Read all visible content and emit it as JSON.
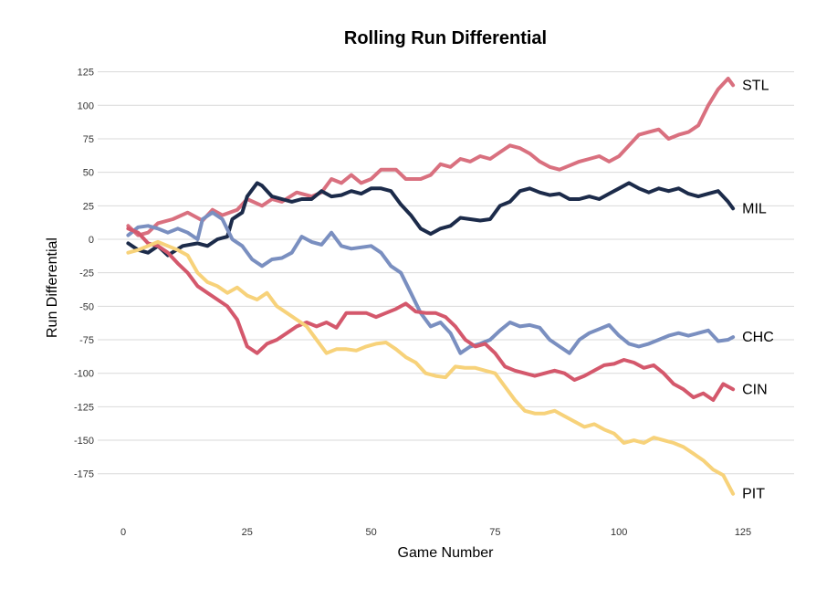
{
  "chart_data": {
    "type": "line",
    "title": "Rolling Run Differential",
    "xlabel": "Game Number",
    "ylabel": "Run Differential",
    "xlim": [
      0,
      125
    ],
    "ylim": [
      -190,
      125
    ],
    "x_ticks": [
      0,
      25,
      50,
      75,
      100,
      125
    ],
    "y_ticks": [
      125,
      100,
      75,
      50,
      25,
      0,
      -25,
      -50,
      -75,
      -100,
      -125,
      -150,
      -175
    ],
    "grid": "horizontal",
    "legend": "end-of-line labels",
    "series": [
      {
        "name": "STL",
        "color": "#d9707f",
        "points": [
          [
            1,
            10
          ],
          [
            3,
            3
          ],
          [
            5,
            5
          ],
          [
            7,
            12
          ],
          [
            10,
            15
          ],
          [
            13,
            20
          ],
          [
            16,
            14
          ],
          [
            18,
            22
          ],
          [
            20,
            18
          ],
          [
            23,
            22
          ],
          [
            25,
            30
          ],
          [
            28,
            25
          ],
          [
            30,
            30
          ],
          [
            32,
            28
          ],
          [
            35,
            35
          ],
          [
            38,
            32
          ],
          [
            40,
            35
          ],
          [
            42,
            45
          ],
          [
            44,
            42
          ],
          [
            46,
            48
          ],
          [
            48,
            42
          ],
          [
            50,
            45
          ],
          [
            52,
            52
          ],
          [
            55,
            52
          ],
          [
            57,
            45
          ],
          [
            60,
            45
          ],
          [
            62,
            48
          ],
          [
            64,
            56
          ],
          [
            66,
            54
          ],
          [
            68,
            60
          ],
          [
            70,
            58
          ],
          [
            72,
            62
          ],
          [
            74,
            60
          ],
          [
            76,
            65
          ],
          [
            78,
            70
          ],
          [
            80,
            68
          ],
          [
            82,
            64
          ],
          [
            84,
            58
          ],
          [
            86,
            54
          ],
          [
            88,
            52
          ],
          [
            90,
            55
          ],
          [
            92,
            58
          ],
          [
            94,
            60
          ],
          [
            96,
            62
          ],
          [
            98,
            58
          ],
          [
            100,
            62
          ],
          [
            102,
            70
          ],
          [
            104,
            78
          ],
          [
            106,
            80
          ],
          [
            108,
            82
          ],
          [
            110,
            75
          ],
          [
            112,
            78
          ],
          [
            114,
            80
          ],
          [
            116,
            85
          ],
          [
            118,
            100
          ],
          [
            120,
            112
          ],
          [
            122,
            120
          ],
          [
            123,
            115
          ]
        ]
      },
      {
        "name": "MIL",
        "color": "#1c2b4a",
        "points": [
          [
            1,
            -3
          ],
          [
            3,
            -8
          ],
          [
            5,
            -10
          ],
          [
            7,
            -5
          ],
          [
            9,
            -12
          ],
          [
            12,
            -5
          ],
          [
            15,
            -3
          ],
          [
            17,
            -5
          ],
          [
            19,
            0
          ],
          [
            21,
            2
          ],
          [
            22,
            15
          ],
          [
            24,
            20
          ],
          [
            25,
            32
          ],
          [
            27,
            42
          ],
          [
            28,
            40
          ],
          [
            30,
            32
          ],
          [
            32,
            30
          ],
          [
            34,
            28
          ],
          [
            36,
            30
          ],
          [
            38,
            30
          ],
          [
            40,
            36
          ],
          [
            42,
            32
          ],
          [
            44,
            33
          ],
          [
            46,
            36
          ],
          [
            48,
            34
          ],
          [
            50,
            38
          ],
          [
            52,
            38
          ],
          [
            54,
            36
          ],
          [
            56,
            26
          ],
          [
            58,
            18
          ],
          [
            60,
            8
          ],
          [
            62,
            4
          ],
          [
            64,
            8
          ],
          [
            66,
            10
          ],
          [
            68,
            16
          ],
          [
            70,
            15
          ],
          [
            72,
            14
          ],
          [
            74,
            15
          ],
          [
            76,
            25
          ],
          [
            78,
            28
          ],
          [
            80,
            36
          ],
          [
            82,
            38
          ],
          [
            84,
            35
          ],
          [
            86,
            33
          ],
          [
            88,
            34
          ],
          [
            90,
            30
          ],
          [
            92,
            30
          ],
          [
            94,
            32
          ],
          [
            96,
            30
          ],
          [
            98,
            34
          ],
          [
            100,
            38
          ],
          [
            102,
            42
          ],
          [
            104,
            38
          ],
          [
            106,
            35
          ],
          [
            108,
            38
          ],
          [
            110,
            36
          ],
          [
            112,
            38
          ],
          [
            114,
            34
          ],
          [
            116,
            32
          ],
          [
            118,
            34
          ],
          [
            120,
            36
          ],
          [
            122,
            28
          ],
          [
            123,
            23
          ]
        ]
      },
      {
        "name": "CHC",
        "color": "#7a8fc0",
        "points": [
          [
            1,
            3
          ],
          [
            3,
            9
          ],
          [
            5,
            10
          ],
          [
            7,
            8
          ],
          [
            9,
            5
          ],
          [
            11,
            8
          ],
          [
            13,
            5
          ],
          [
            15,
            0
          ],
          [
            16,
            15
          ],
          [
            18,
            20
          ],
          [
            20,
            15
          ],
          [
            22,
            0
          ],
          [
            24,
            -5
          ],
          [
            26,
            -15
          ],
          [
            28,
            -20
          ],
          [
            30,
            -15
          ],
          [
            32,
            -14
          ],
          [
            34,
            -10
          ],
          [
            36,
            2
          ],
          [
            38,
            -2
          ],
          [
            40,
            -4
          ],
          [
            42,
            5
          ],
          [
            44,
            -5
          ],
          [
            46,
            -7
          ],
          [
            48,
            -6
          ],
          [
            50,
            -5
          ],
          [
            52,
            -10
          ],
          [
            54,
            -20
          ],
          [
            56,
            -25
          ],
          [
            58,
            -40
          ],
          [
            60,
            -55
          ],
          [
            62,
            -65
          ],
          [
            64,
            -62
          ],
          [
            66,
            -70
          ],
          [
            68,
            -85
          ],
          [
            70,
            -80
          ],
          [
            72,
            -78
          ],
          [
            74,
            -75
          ],
          [
            76,
            -68
          ],
          [
            78,
            -62
          ],
          [
            80,
            -65
          ],
          [
            82,
            -64
          ],
          [
            84,
            -66
          ],
          [
            86,
            -75
          ],
          [
            88,
            -80
          ],
          [
            90,
            -85
          ],
          [
            92,
            -75
          ],
          [
            94,
            -70
          ],
          [
            96,
            -67
          ],
          [
            98,
            -64
          ],
          [
            100,
            -72
          ],
          [
            102,
            -78
          ],
          [
            104,
            -80
          ],
          [
            106,
            -78
          ],
          [
            108,
            -75
          ],
          [
            110,
            -72
          ],
          [
            112,
            -70
          ],
          [
            114,
            -72
          ],
          [
            116,
            -70
          ],
          [
            118,
            -68
          ],
          [
            120,
            -76
          ],
          [
            122,
            -75
          ],
          [
            123,
            -73
          ]
        ]
      },
      {
        "name": "CIN",
        "color": "#d4586c",
        "points": [
          [
            1,
            8
          ],
          [
            3,
            5
          ],
          [
            5,
            -3
          ],
          [
            7,
            -5
          ],
          [
            9,
            -10
          ],
          [
            11,
            -18
          ],
          [
            13,
            -25
          ],
          [
            15,
            -35
          ],
          [
            17,
            -40
          ],
          [
            19,
            -45
          ],
          [
            21,
            -50
          ],
          [
            23,
            -60
          ],
          [
            25,
            -80
          ],
          [
            27,
            -85
          ],
          [
            29,
            -78
          ],
          [
            31,
            -75
          ],
          [
            33,
            -70
          ],
          [
            35,
            -65
          ],
          [
            37,
            -62
          ],
          [
            39,
            -65
          ],
          [
            41,
            -62
          ],
          [
            43,
            -66
          ],
          [
            45,
            -55
          ],
          [
            47,
            -55
          ],
          [
            49,
            -55
          ],
          [
            51,
            -58
          ],
          [
            53,
            -55
          ],
          [
            55,
            -52
          ],
          [
            57,
            -48
          ],
          [
            59,
            -54
          ],
          [
            61,
            -55
          ],
          [
            63,
            -55
          ],
          [
            65,
            -58
          ],
          [
            67,
            -65
          ],
          [
            69,
            -75
          ],
          [
            71,
            -80
          ],
          [
            73,
            -78
          ],
          [
            75,
            -85
          ],
          [
            77,
            -95
          ],
          [
            79,
            -98
          ],
          [
            81,
            -100
          ],
          [
            83,
            -102
          ],
          [
            85,
            -100
          ],
          [
            87,
            -98
          ],
          [
            89,
            -100
          ],
          [
            91,
            -105
          ],
          [
            93,
            -102
          ],
          [
            95,
            -98
          ],
          [
            97,
            -94
          ],
          [
            99,
            -93
          ],
          [
            101,
            -90
          ],
          [
            103,
            -92
          ],
          [
            105,
            -96
          ],
          [
            107,
            -94
          ],
          [
            109,
            -100
          ],
          [
            111,
            -108
          ],
          [
            113,
            -112
          ],
          [
            115,
            -118
          ],
          [
            117,
            -115
          ],
          [
            119,
            -120
          ],
          [
            121,
            -108
          ],
          [
            123,
            -112
          ]
        ]
      },
      {
        "name": "PIT",
        "color": "#f7d27a",
        "points": [
          [
            1,
            -10
          ],
          [
            3,
            -8
          ],
          [
            5,
            -5
          ],
          [
            7,
            -2
          ],
          [
            9,
            -5
          ],
          [
            11,
            -8
          ],
          [
            13,
            -12
          ],
          [
            15,
            -25
          ],
          [
            17,
            -32
          ],
          [
            19,
            -35
          ],
          [
            21,
            -40
          ],
          [
            23,
            -36
          ],
          [
            25,
            -42
          ],
          [
            27,
            -45
          ],
          [
            29,
            -40
          ],
          [
            31,
            -50
          ],
          [
            33,
            -55
          ],
          [
            35,
            -60
          ],
          [
            37,
            -65
          ],
          [
            39,
            -75
          ],
          [
            41,
            -85
          ],
          [
            43,
            -82
          ],
          [
            45,
            -82
          ],
          [
            47,
            -83
          ],
          [
            49,
            -80
          ],
          [
            51,
            -78
          ],
          [
            53,
            -77
          ],
          [
            55,
            -82
          ],
          [
            57,
            -88
          ],
          [
            59,
            -92
          ],
          [
            61,
            -100
          ],
          [
            63,
            -102
          ],
          [
            65,
            -103
          ],
          [
            67,
            -95
          ],
          [
            69,
            -96
          ],
          [
            71,
            -96
          ],
          [
            73,
            -98
          ],
          [
            75,
            -100
          ],
          [
            77,
            -110
          ],
          [
            79,
            -120
          ],
          [
            81,
            -128
          ],
          [
            83,
            -130
          ],
          [
            85,
            -130
          ],
          [
            87,
            -128
          ],
          [
            89,
            -132
          ],
          [
            91,
            -136
          ],
          [
            93,
            -140
          ],
          [
            95,
            -138
          ],
          [
            97,
            -142
          ],
          [
            99,
            -145
          ],
          [
            101,
            -152
          ],
          [
            103,
            -150
          ],
          [
            105,
            -152
          ],
          [
            107,
            -148
          ],
          [
            109,
            -150
          ],
          [
            111,
            -152
          ],
          [
            113,
            -155
          ],
          [
            115,
            -160
          ],
          [
            117,
            -165
          ],
          [
            119,
            -172
          ],
          [
            121,
            -176
          ],
          [
            123,
            -190
          ]
        ]
      }
    ]
  }
}
